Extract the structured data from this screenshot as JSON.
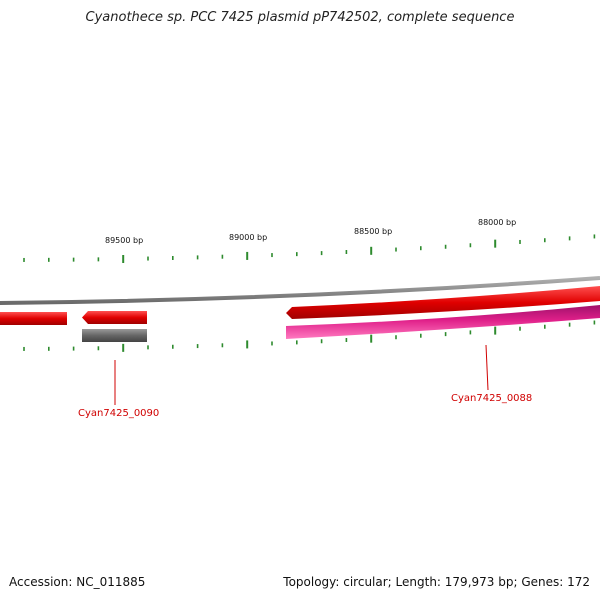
{
  "title": "Cyanothece sp. PCC 7425 plasmid pP742502, complete sequence",
  "footer": {
    "accession": "Accession: NC_011885",
    "topology": "Topology: circular; Length: 179,973 bp; Genes: 172"
  },
  "ticks": [
    {
      "label": "89500 bp",
      "bp": 89500
    },
    {
      "label": "89000 bp",
      "bp": 89000
    },
    {
      "label": "88500 bp",
      "bp": 88500
    },
    {
      "label": "88000 bp",
      "bp": 88000
    }
  ],
  "genes": [
    {
      "label": "Cyan7425_0090"
    },
    {
      "label": "Cyan7425_0088"
    }
  ],
  "colors": {
    "backbone": "#8a8a8a",
    "forward_gene": "#e00000",
    "reverse_gene": "#e0208a",
    "other_feature": "#666666",
    "tick": "#2e8b2e",
    "gene_label": "#d00000"
  }
}
